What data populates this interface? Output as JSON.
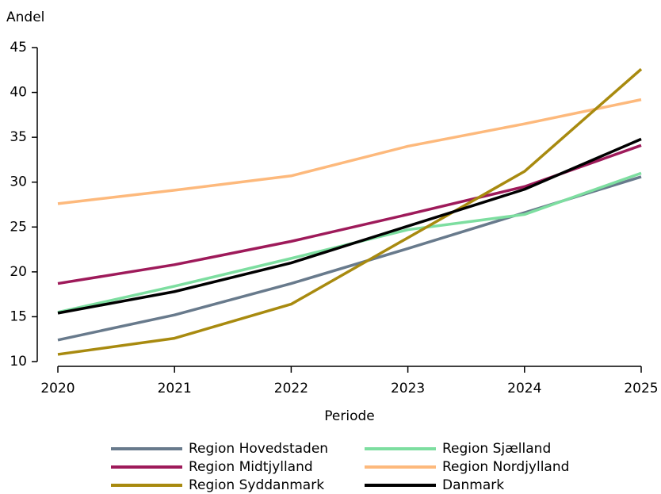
{
  "chart_data": {
    "type": "line",
    "y_label": "Andel",
    "x_label": "Periode",
    "x": [
      2020,
      2021,
      2022,
      2023,
      2024,
      2025
    ],
    "xlim": [
      2020,
      2025
    ],
    "xticks": [
      2020,
      2021,
      2022,
      2023,
      2024,
      2025
    ],
    "ylim": [
      10,
      45
    ],
    "yticks": [
      10,
      15,
      20,
      25,
      30,
      35,
      40,
      45
    ],
    "series": [
      {
        "name": "Region Hovedstaden",
        "color": "#687a8c",
        "values": [
          12.4,
          15.2,
          18.7,
          22.6,
          26.6,
          30.6
        ]
      },
      {
        "name": "Region Sjælland",
        "color": "#7ddea0",
        "values": [
          15.5,
          18.4,
          21.5,
          24.7,
          26.4,
          31.0
        ]
      },
      {
        "name": "Region Midtjylland",
        "color": "#9e1a5a",
        "values": [
          18.7,
          20.8,
          23.4,
          26.4,
          29.5,
          34.1
        ]
      },
      {
        "name": "Region Nordjylland",
        "color": "#fdb97c",
        "values": [
          27.6,
          29.1,
          30.7,
          34.0,
          36.5,
          39.2
        ]
      },
      {
        "name": "Region Syddanmark",
        "color": "#a88a0f",
        "values": [
          10.8,
          12.6,
          16.4,
          23.8,
          31.2,
          42.6
        ]
      },
      {
        "name": "Danmark",
        "color": "#000000",
        "values": [
          15.4,
          17.8,
          21.0,
          25.1,
          29.2,
          34.8
        ]
      }
    ]
  }
}
